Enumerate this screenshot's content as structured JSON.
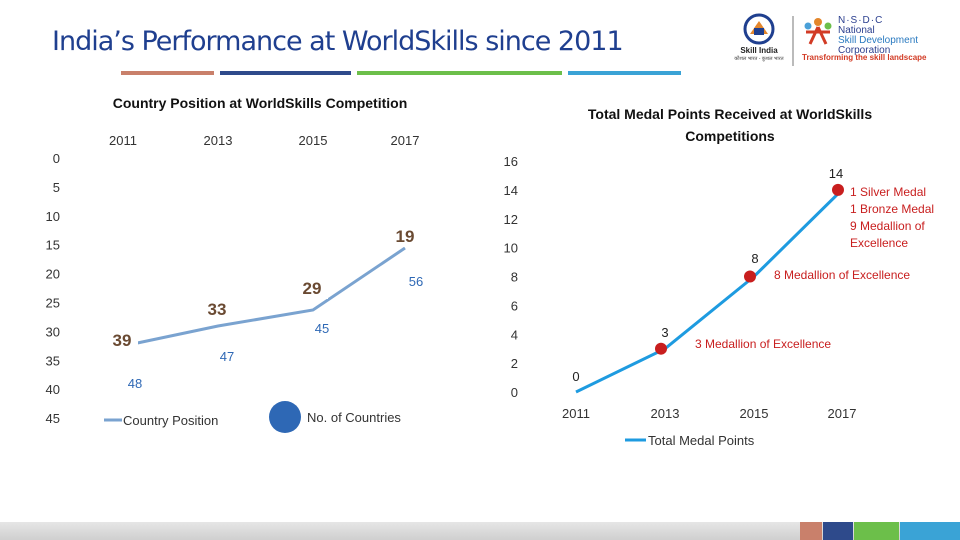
{
  "header": {
    "title": "India’s Performance at WorldSkills since 2011",
    "bar_colors": [
      "#c9806b",
      "#2e4a8b",
      "#6cbf4a",
      "#3aa3d6"
    ]
  },
  "logos": {
    "skill_india": {
      "label": "Skill India",
      "sub": "कौशल भारत - कुशल भारत",
      "icon": "skill-india-logo"
    },
    "nsdc": {
      "acronym": "N·S·D·C",
      "line1": "National",
      "line2": "Skill Development",
      "line3": "Corporation",
      "tagline": "Transforming the skill landscape",
      "icon": "nsdc-logo"
    }
  },
  "chart_data": [
    {
      "type": "line",
      "title": "Country Position at WorldSkills Competition",
      "x": [
        "2011",
        "2013",
        "2015",
        "2017"
      ],
      "yticks": [
        "0",
        "5",
        "10",
        "15",
        "20",
        "25",
        "30",
        "35",
        "40",
        "45"
      ],
      "ylim": [
        0,
        45
      ],
      "y_inverted": true,
      "series": [
        {
          "name": "Country Position",
          "values": [
            39,
            33,
            29,
            19
          ],
          "color": "#7aa3d0"
        },
        {
          "name": "No. of Countries",
          "values": [
            48,
            47,
            45,
            56
          ],
          "color": "#2e68b5"
        }
      ],
      "legend": "bottom"
    },
    {
      "type": "line",
      "title": "Total Medal Points Received at WorldSkills Competitions",
      "x": [
        "2011",
        "2013",
        "2015",
        "2017"
      ],
      "yticks": [
        "0",
        "2",
        "4",
        "6",
        "8",
        "10",
        "12",
        "14",
        "16"
      ],
      "ylim": [
        0,
        16
      ],
      "series": [
        {
          "name": "Total Medal Points",
          "values": [
            0,
            3,
            8,
            14
          ],
          "color": "#1e9be0"
        }
      ],
      "data_labels": [
        "0",
        "3",
        "8",
        "14"
      ],
      "annotations": [
        {
          "point": 1,
          "text": "3 Medallion of Excellence"
        },
        {
          "point": 2,
          "text": "8 Medallion of Excellence"
        },
        {
          "point": 3,
          "lines": [
            "1 Silver Medal",
            "1 Bronze Medal",
            "9 Medallion of",
            "Excellence"
          ]
        }
      ],
      "marker_color": "#c81e1e",
      "annotation_color": "#c81e1e",
      "legend": "bottom"
    }
  ]
}
